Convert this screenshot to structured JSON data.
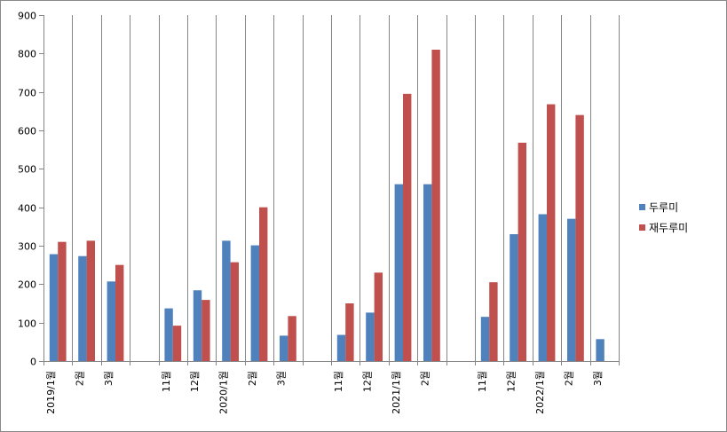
{
  "chart_data": {
    "type": "bar",
    "title": "",
    "xlabel": "",
    "ylabel": "",
    "ylim": [
      0,
      900
    ],
    "yticks": [
      0,
      100,
      200,
      300,
      400,
      500,
      600,
      700,
      800,
      900
    ],
    "grid": "vertical gridlines between categories",
    "legend_position": "right",
    "categories": [
      "2019/1월",
      "2월",
      "3월",
      "",
      "11월",
      "12월",
      "2020/1월",
      "2월",
      "3월",
      "",
      "11월",
      "12월",
      "2021/1월",
      "2월",
      "",
      "11월",
      "12월",
      "2022/1월",
      "2월",
      "3월"
    ],
    "series": [
      {
        "name": "두루미",
        "color": "#4F81BD",
        "values": [
          278,
          273,
          207,
          null,
          137,
          184,
          313,
          301,
          66,
          null,
          68,
          126,
          460,
          460,
          null,
          115,
          330,
          382,
          370,
          57
        ]
      },
      {
        "name": "재두루미",
        "color": "#C0504D",
        "values": [
          310,
          313,
          250,
          null,
          92,
          159,
          257,
          400,
          117,
          null,
          150,
          230,
          695,
          810,
          null,
          205,
          568,
          668,
          640,
          null
        ]
      }
    ]
  }
}
